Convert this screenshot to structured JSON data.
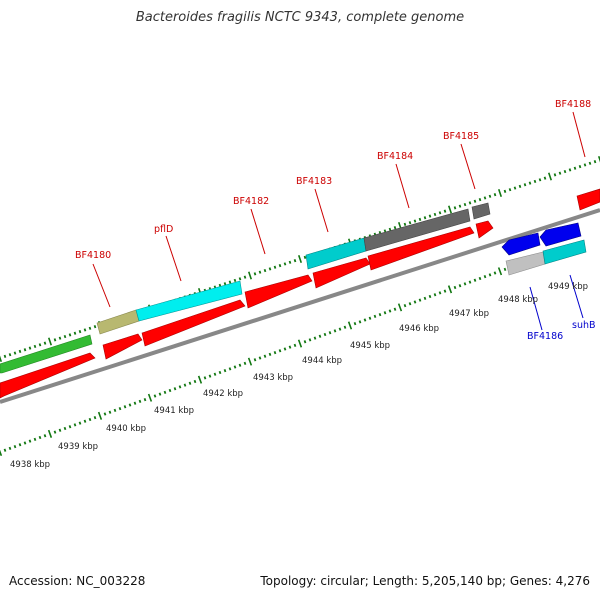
{
  "title": "Bacteroides fragilis NCTC 9343, complete genome",
  "footer": {
    "accession": "Accession: NC_003228",
    "summary": "Topology: circular; Length: 5,205,140 bp; Genes: 4,276"
  },
  "colors": {
    "forward_gene": "#ff0000",
    "rna": "#00cccc",
    "gray_gene": "#666666",
    "light_gray_gene": "#c0c0c0",
    "khaki_gene": "#b8b870",
    "green_gene": "#33bb33",
    "reverse_gene": "#0000ee",
    "backbone": "#888888",
    "tick": "#117711",
    "top_label": "#cc0000",
    "bottom_label": "#0000cc"
  },
  "gene_labels_top": [
    "BF4180",
    "pflD",
    "BF4182",
    "BF4183",
    "BF4184",
    "BF4185",
    "BF4188"
  ],
  "gene_labels_bottom": [
    "BF4186",
    "suhB"
  ],
  "kbp_labels": [
    "4938 kbp",
    "4939 kbp",
    "4940 kbp",
    "4941 kbp",
    "4942 kbp",
    "4943 kbp",
    "4944 kbp",
    "4945 kbp",
    "4946 kbp",
    "4947 kbp",
    "4948 kbp",
    "4949 kbp"
  ]
}
